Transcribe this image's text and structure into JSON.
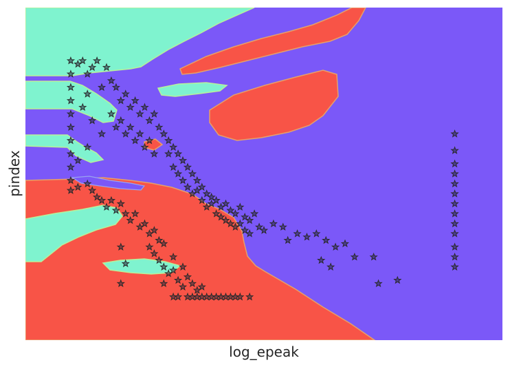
{
  "chart_data": {
    "type": "scatter",
    "title": "",
    "xlabel": "log_epeak",
    "ylabel": "pindex",
    "xticks": [],
    "yticks": [],
    "grid": false,
    "legend": "none",
    "xlim": [
      0,
      100
    ],
    "ylim": [
      0,
      100
    ],
    "background": "decision-boundary regions (3 classes)",
    "region_colors": {
      "class_0": "#7b58f8",
      "class_1": "#7ff3cf",
      "class_2": "#f85447"
    },
    "marker": "star",
    "marker_edge_color": "#2a2a2a",
    "series": [
      {
        "points": [
          {
            "x": 9.5,
            "y": 84
          },
          {
            "x": 9.5,
            "y": 80
          },
          {
            "x": 9.5,
            "y": 76
          },
          {
            "x": 9.5,
            "y": 72
          },
          {
            "x": 9.5,
            "y": 68
          },
          {
            "x": 9.5,
            "y": 64
          },
          {
            "x": 9.5,
            "y": 60
          },
          {
            "x": 9.5,
            "y": 56
          },
          {
            "x": 9.5,
            "y": 52
          },
          {
            "x": 9.5,
            "y": 48
          },
          {
            "x": 9.5,
            "y": 45
          },
          {
            "x": 11,
            "y": 83
          },
          {
            "x": 12,
            "y": 84
          },
          {
            "x": 13,
            "y": 80
          },
          {
            "x": 14,
            "y": 82
          },
          {
            "x": 15,
            "y": 84
          },
          {
            "x": 17,
            "y": 82
          },
          {
            "x": 18,
            "y": 78
          },
          {
            "x": 16,
            "y": 76
          },
          {
            "x": 13,
            "y": 74
          },
          {
            "x": 12,
            "y": 70
          },
          {
            "x": 14,
            "y": 66
          },
          {
            "x": 16,
            "y": 62
          },
          {
            "x": 13,
            "y": 58
          },
          {
            "x": 11,
            "y": 54
          },
          {
            "x": 19,
            "y": 76
          },
          {
            "x": 20,
            "y": 72
          },
          {
            "x": 21,
            "y": 74
          },
          {
            "x": 22,
            "y": 70
          },
          {
            "x": 23,
            "y": 72
          },
          {
            "x": 24,
            "y": 68
          },
          {
            "x": 25,
            "y": 70
          },
          {
            "x": 26,
            "y": 66
          },
          {
            "x": 27,
            "y": 68
          },
          {
            "x": 28,
            "y": 64
          },
          {
            "x": 18,
            "y": 68
          },
          {
            "x": 19,
            "y": 64
          },
          {
            "x": 20,
            "y": 66
          },
          {
            "x": 21,
            "y": 62
          },
          {
            "x": 22,
            "y": 64
          },
          {
            "x": 23,
            "y": 60
          },
          {
            "x": 24,
            "y": 62
          },
          {
            "x": 25,
            "y": 58
          },
          {
            "x": 26,
            "y": 60
          },
          {
            "x": 27,
            "y": 56
          },
          {
            "x": 29,
            "y": 62
          },
          {
            "x": 30,
            "y": 60
          },
          {
            "x": 31,
            "y": 58
          },
          {
            "x": 32,
            "y": 56
          },
          {
            "x": 33,
            "y": 54
          },
          {
            "x": 34,
            "y": 52
          },
          {
            "x": 35,
            "y": 50
          },
          {
            "x": 36,
            "y": 48
          },
          {
            "x": 37,
            "y": 46
          },
          {
            "x": 38,
            "y": 44
          },
          {
            "x": 39,
            "y": 43
          },
          {
            "x": 40,
            "y": 42
          },
          {
            "x": 41,
            "y": 40
          },
          {
            "x": 42,
            "y": 41
          },
          {
            "x": 43,
            "y": 39
          },
          {
            "x": 44,
            "y": 38
          },
          {
            "x": 45,
            "y": 40
          },
          {
            "x": 46,
            "y": 37
          },
          {
            "x": 47,
            "y": 36
          },
          {
            "x": 48,
            "y": 38
          },
          {
            "x": 30,
            "y": 56
          },
          {
            "x": 31,
            "y": 52
          },
          {
            "x": 32,
            "y": 50
          },
          {
            "x": 33,
            "y": 48
          },
          {
            "x": 34,
            "y": 46
          },
          {
            "x": 35,
            "y": 44
          },
          {
            "x": 36,
            "y": 45
          },
          {
            "x": 37,
            "y": 42
          },
          {
            "x": 38,
            "y": 40
          },
          {
            "x": 39,
            "y": 41
          },
          {
            "x": 40,
            "y": 38
          },
          {
            "x": 41,
            "y": 37
          },
          {
            "x": 42,
            "y": 36
          },
          {
            "x": 43,
            "y": 35
          },
          {
            "x": 44,
            "y": 34
          },
          {
            "x": 45,
            "y": 35
          },
          {
            "x": 46,
            "y": 33
          },
          {
            "x": 47,
            "y": 32
          },
          {
            "x": 49,
            "y": 34
          },
          {
            "x": 50,
            "y": 33
          },
          {
            "x": 52,
            "y": 35
          },
          {
            "x": 54,
            "y": 34
          },
          {
            "x": 55,
            "y": 30
          },
          {
            "x": 57,
            "y": 32
          },
          {
            "x": 59,
            "y": 31
          },
          {
            "x": 61,
            "y": 32
          },
          {
            "x": 63,
            "y": 30
          },
          {
            "x": 65,
            "y": 28
          },
          {
            "x": 67,
            "y": 29
          },
          {
            "x": 69,
            "y": 25
          },
          {
            "x": 62,
            "y": 24
          },
          {
            "x": 64,
            "y": 22
          },
          {
            "x": 73,
            "y": 25
          },
          {
            "x": 74,
            "y": 17
          },
          {
            "x": 78,
            "y": 18
          },
          {
            "x": 90,
            "y": 62
          },
          {
            "x": 90,
            "y": 57
          },
          {
            "x": 90,
            "y": 53
          },
          {
            "x": 90,
            "y": 50
          },
          {
            "x": 90,
            "y": 47
          },
          {
            "x": 90,
            "y": 44
          },
          {
            "x": 90,
            "y": 41
          },
          {
            "x": 90,
            "y": 38
          },
          {
            "x": 90,
            "y": 35
          },
          {
            "x": 90,
            "y": 32
          },
          {
            "x": 90,
            "y": 28
          },
          {
            "x": 90,
            "y": 25
          },
          {
            "x": 90,
            "y": 22
          },
          {
            "x": 11,
            "y": 46
          },
          {
            "x": 13,
            "y": 47
          },
          {
            "x": 14,
            "y": 45
          },
          {
            "x": 15,
            "y": 43
          },
          {
            "x": 16,
            "y": 42
          },
          {
            "x": 17,
            "y": 40
          },
          {
            "x": 18,
            "y": 42
          },
          {
            "x": 19,
            "y": 39
          },
          {
            "x": 20,
            "y": 41
          },
          {
            "x": 21,
            "y": 38
          },
          {
            "x": 22,
            "y": 36
          },
          {
            "x": 23,
            "y": 38
          },
          {
            "x": 24,
            "y": 34
          },
          {
            "x": 25,
            "y": 35
          },
          {
            "x": 26,
            "y": 32
          },
          {
            "x": 27,
            "y": 33
          },
          {
            "x": 28,
            "y": 30
          },
          {
            "x": 29,
            "y": 29
          },
          {
            "x": 26,
            "y": 28
          },
          {
            "x": 27,
            "y": 26
          },
          {
            "x": 28,
            "y": 24
          },
          {
            "x": 29,
            "y": 22
          },
          {
            "x": 30,
            "y": 20
          },
          {
            "x": 31,
            "y": 21
          },
          {
            "x": 32,
            "y": 18
          },
          {
            "x": 33,
            "y": 16
          },
          {
            "x": 34,
            "y": 19
          },
          {
            "x": 35,
            "y": 17
          },
          {
            "x": 36,
            "y": 15
          },
          {
            "x": 37,
            "y": 16
          },
          {
            "x": 33,
            "y": 22
          },
          {
            "x": 31,
            "y": 25
          },
          {
            "x": 29,
            "y": 17
          },
          {
            "x": 31,
            "y": 13
          },
          {
            "x": 20,
            "y": 28
          },
          {
            "x": 21,
            "y": 23
          },
          {
            "x": 20,
            "y": 17
          },
          {
            "x": 32,
            "y": 13
          },
          {
            "x": 34,
            "y": 13
          },
          {
            "x": 35,
            "y": 13
          },
          {
            "x": 36,
            "y": 13
          },
          {
            "x": 37,
            "y": 13
          },
          {
            "x": 38,
            "y": 13
          },
          {
            "x": 39,
            "y": 13
          },
          {
            "x": 40,
            "y": 13
          },
          {
            "x": 41,
            "y": 13
          },
          {
            "x": 42,
            "y": 13
          },
          {
            "x": 43,
            "y": 13
          },
          {
            "x": 44,
            "y": 13
          },
          {
            "x": 45,
            "y": 13
          },
          {
            "x": 47,
            "y": 13
          }
        ]
      }
    ]
  }
}
